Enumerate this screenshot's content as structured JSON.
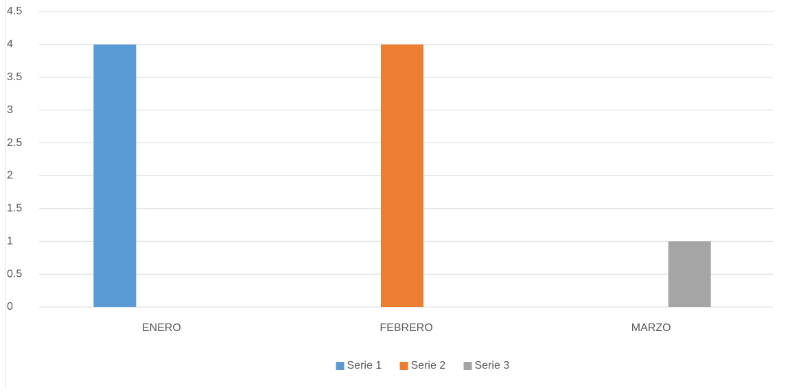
{
  "chart_data": {
    "type": "bar",
    "categories": [
      "ENERO",
      "FEBRERO",
      "MARZO"
    ],
    "series": [
      {
        "name": "Serie 1",
        "color": "#5b9bd5",
        "values": [
          4,
          0,
          0
        ]
      },
      {
        "name": "Serie 2",
        "color": "#ed7d31",
        "values": [
          0,
          4,
          0
        ]
      },
      {
        "name": "Serie 3",
        "color": "#a5a5a5",
        "values": [
          0,
          0,
          1
        ]
      }
    ],
    "ylim": [
      0,
      4.5
    ],
    "yticks": [
      0,
      0.5,
      1,
      1.5,
      2,
      2.5,
      3,
      3.5,
      4,
      4.5
    ],
    "grid": true,
    "legend": "bottom"
  }
}
